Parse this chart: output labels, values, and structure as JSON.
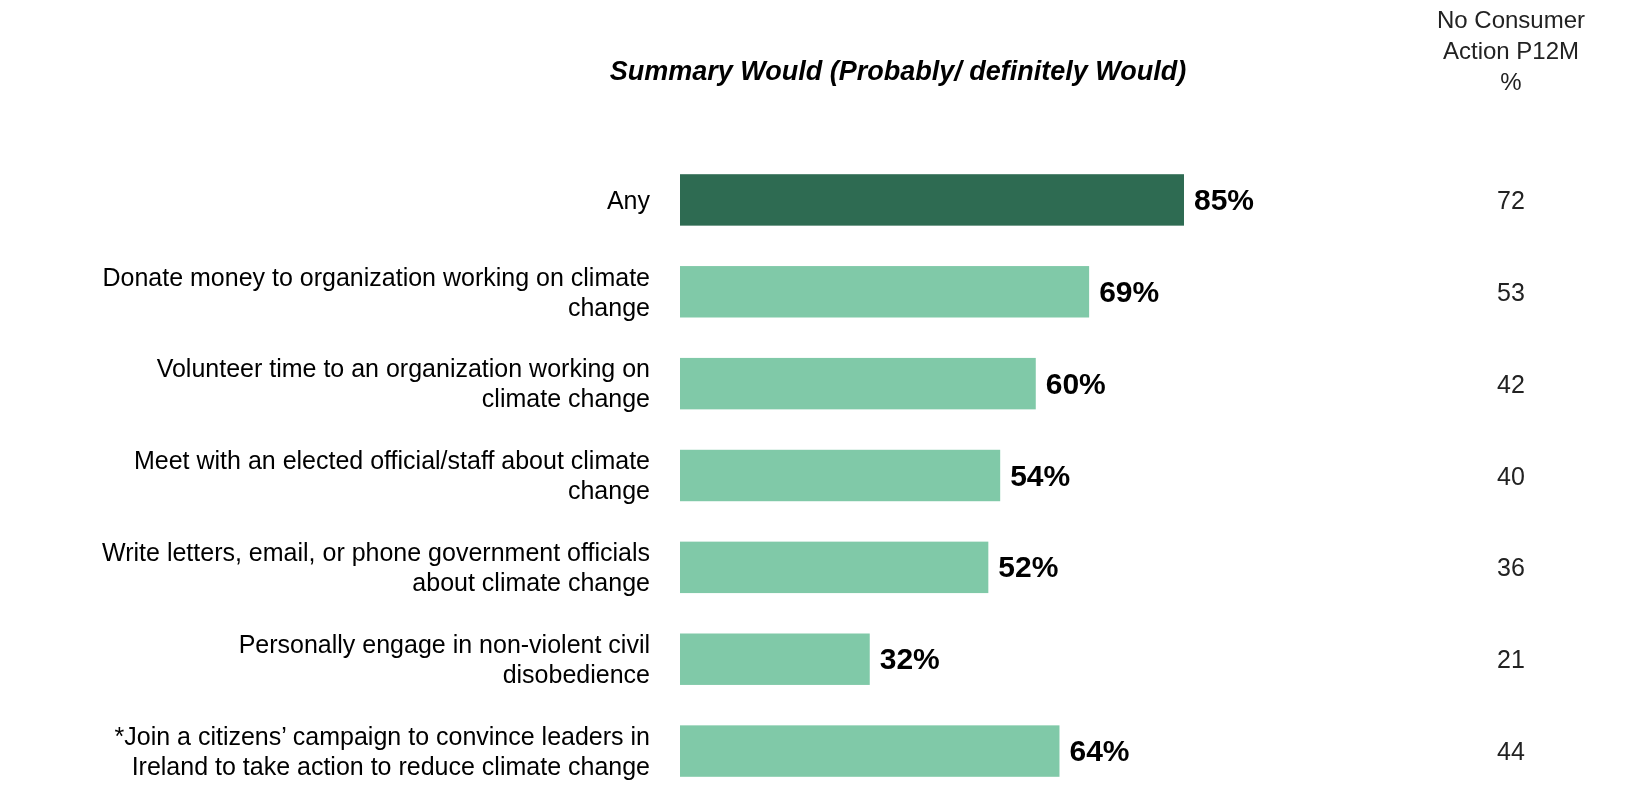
{
  "chart_data": {
    "type": "bar",
    "orientation": "horizontal",
    "title": "Summary Would (Probably/ definitely Would)",
    "categories": [
      "Any",
      "Donate money to organization working on climate change",
      "Volunteer time to an organization working on climate change",
      "Meet with an elected official/staff about climate change",
      "Write letters, email, or phone government officials about climate change",
      "Personally engage in non-violent civil disobedience",
      "*Join a citizens’ campaign to convince leaders in Ireland to take action to reduce climate change"
    ],
    "values": [
      85,
      69,
      60,
      54,
      52,
      32,
      64
    ],
    "colors": [
      "#2e6b52",
      "#80c9a8",
      "#80c9a8",
      "#80c9a8",
      "#80c9a8",
      "#80c9a8",
      "#80c9a8"
    ],
    "value_labels": [
      "85%",
      "69%",
      "60%",
      "54%",
      "52%",
      "32%",
      "64%"
    ],
    "annotations": [
      "No Consumer Action P12M %",
      "72",
      "53",
      "42",
      "40",
      "36",
      "21",
      "44"
    ]
  }
}
